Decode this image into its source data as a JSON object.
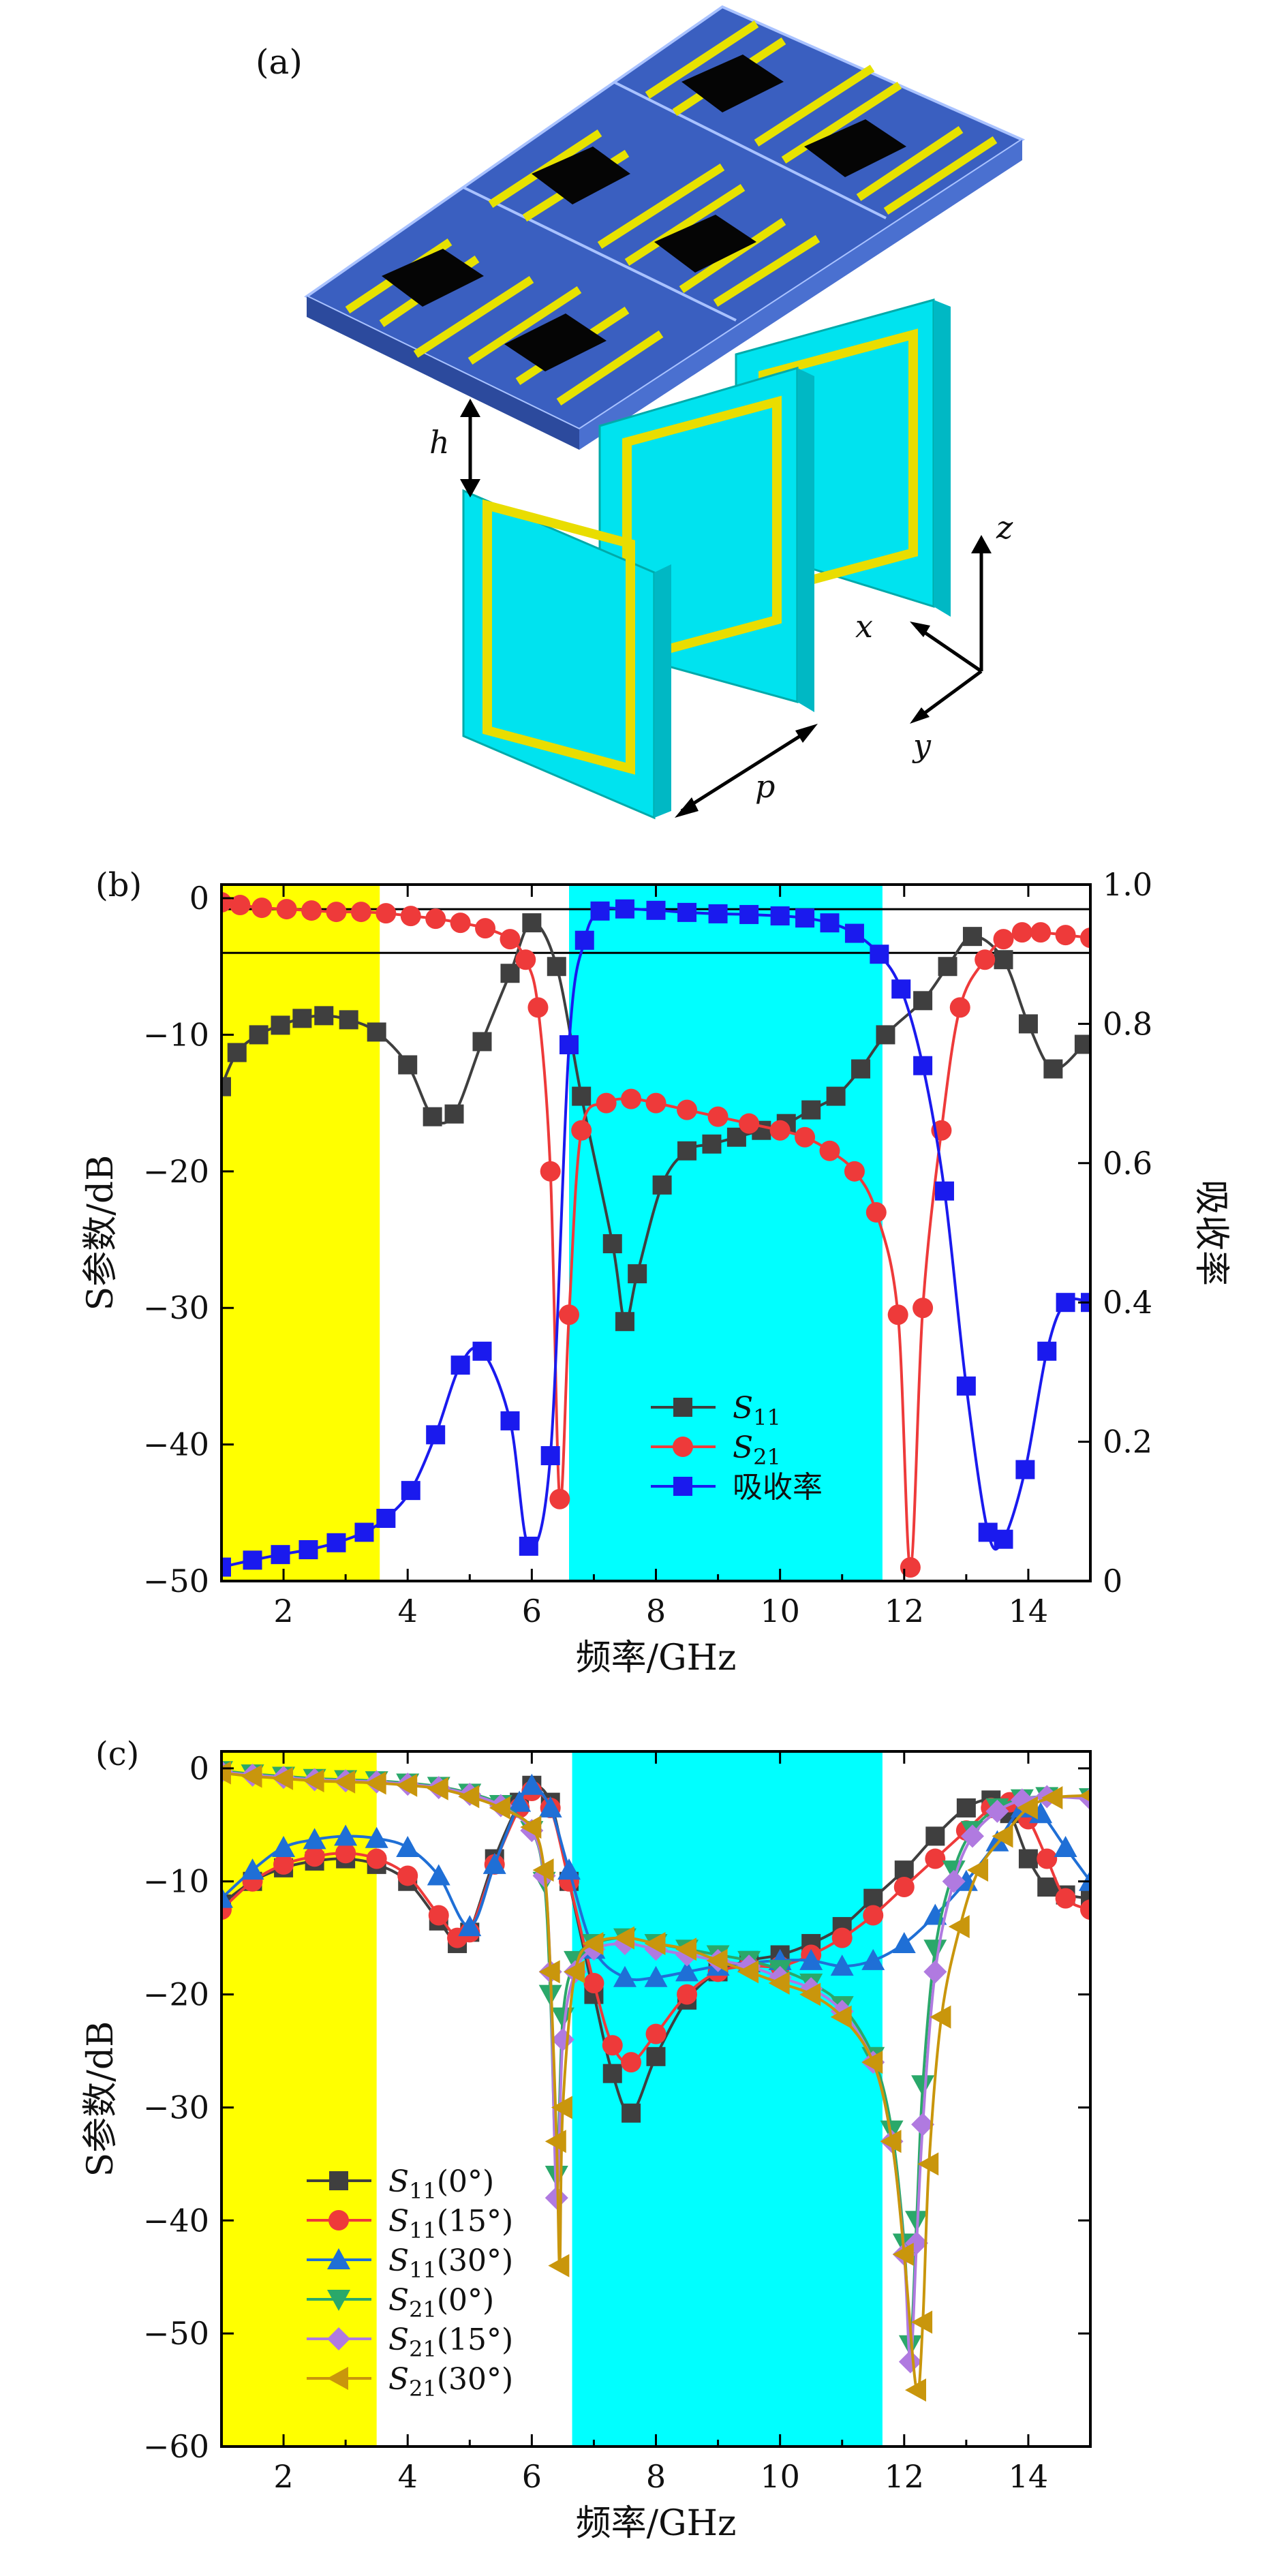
{
  "panel_a": {
    "label": "(a)",
    "h_label": "h",
    "p_label": "p",
    "axis_x": "x",
    "axis_y": "y",
    "axis_z": "z"
  },
  "panel_b": {
    "label": "(b)",
    "xlabel": "频率/GHz",
    "ylabel": "S参数/dB",
    "ylabel_right": "吸收率",
    "legend": [
      "S11",
      "S21",
      "吸收率"
    ]
  },
  "panel_c": {
    "label": "(c)",
    "xlabel": "频率/GHz",
    "ylabel": "S参数/dB",
    "legend": [
      "S11(0°)",
      "S11(15°)",
      "S11(30°)",
      "S21(0°)",
      "S21(15°)",
      "S21(30°)"
    ]
  },
  "colors": {
    "s11": "#3f3f3f",
    "s21": "#ee3a3a",
    "absorb": "#1a1aee",
    "s11_30": "#1f6fd6",
    "s21_0": "#2aa86a",
    "s21_15": "#b07ae0",
    "s21_30": "#c9960c",
    "yellow_band": "#ffff00",
    "cyan_band": "#00ffff"
  },
  "chart_data": [
    {
      "type": "line",
      "title": "(b)",
      "xlabel": "频率/GHz",
      "ylabel": "S参数/dB",
      "y2label": "吸收率",
      "xlim": [
        1,
        15
      ],
      "ylim": [
        -50,
        1
      ],
      "y2lim": [
        0,
        1.0
      ],
      "xticks": [
        2,
        4,
        6,
        8,
        10,
        12,
        14
      ],
      "yticks": [
        0,
        -10,
        -20,
        -30,
        -40,
        -50
      ],
      "y2ticks": [
        0,
        0.2,
        0.4,
        0.6,
        0.8,
        1.0
      ],
      "bands": [
        {
          "color": "yellow",
          "x": [
            1,
            3.55
          ]
        },
        {
          "color": "cyan",
          "x": [
            6.6,
            11.65
          ]
        }
      ],
      "reference_lines_db": [
        -0.8,
        -4.0
      ],
      "series": [
        {
          "name": "S11",
          "axis": "left",
          "x": [
            1.0,
            1.25,
            1.6,
            1.95,
            2.3,
            2.65,
            3.05,
            3.5,
            4.0,
            4.4,
            4.75,
            5.2,
            5.65,
            6.0,
            6.4,
            6.8,
            7.3,
            7.5,
            7.7,
            8.1,
            8.5,
            8.9,
            9.3,
            9.7,
            10.1,
            10.5,
            10.9,
            11.3,
            11.7,
            12.3,
            12.7,
            13.1,
            13.6,
            14.0,
            14.4,
            14.9
          ],
          "y": [
            -13.8,
            -11.3,
            -10.0,
            -9.3,
            -8.8,
            -8.6,
            -8.9,
            -9.8,
            -12.2,
            -16.0,
            -15.8,
            -10.5,
            -5.5,
            -1.8,
            -5.0,
            -14.5,
            -25.3,
            -31.0,
            -27.5,
            -21.0,
            -18.5,
            -18.0,
            -17.5,
            -17.0,
            -16.5,
            -15.5,
            -14.5,
            -12.5,
            -10.0,
            -7.5,
            -5.0,
            -2.8,
            -4.5,
            -9.2,
            -12.5,
            -10.7
          ]
        },
        {
          "name": "S21",
          "axis": "left",
          "x": [
            1.0,
            1.3,
            1.65,
            2.05,
            2.45,
            2.85,
            3.25,
            3.65,
            4.05,
            4.45,
            4.85,
            5.25,
            5.65,
            5.9,
            6.1,
            6.3,
            6.45,
            6.6,
            6.8,
            7.2,
            7.6,
            8.0,
            8.5,
            9.0,
            9.5,
            10.0,
            10.4,
            10.8,
            11.2,
            11.55,
            11.9,
            12.1,
            12.3,
            12.6,
            12.9,
            13.3,
            13.6,
            13.9,
            14.2,
            14.6,
            15.0
          ],
          "y": [
            -0.3,
            -0.5,
            -0.7,
            -0.8,
            -0.9,
            -1.0,
            -1.0,
            -1.1,
            -1.3,
            -1.5,
            -1.8,
            -2.2,
            -3.0,
            -4.5,
            -8.0,
            -20.0,
            -44.0,
            -30.5,
            -17.0,
            -15.0,
            -14.7,
            -15.0,
            -15.5,
            -16.0,
            -16.5,
            -17.0,
            -17.5,
            -18.5,
            -20.0,
            -23.0,
            -30.5,
            -49.0,
            -30.0,
            -17.0,
            -8.0,
            -4.5,
            -3.0,
            -2.5,
            -2.5,
            -2.7,
            -2.9
          ]
        },
        {
          "name": "吸收率",
          "axis": "right",
          "x": [
            1.0,
            1.5,
            1.95,
            2.4,
            2.85,
            3.3,
            3.65,
            4.05,
            4.45,
            4.85,
            5.2,
            5.65,
            5.95,
            6.3,
            6.6,
            6.85,
            7.1,
            7.5,
            8.0,
            8.5,
            9.0,
            9.5,
            10.0,
            10.4,
            10.8,
            11.2,
            11.6,
            11.95,
            12.3,
            12.65,
            13.0,
            13.35,
            13.6,
            13.95,
            14.3,
            14.6,
            15.0
          ],
          "y": [
            0.02,
            0.03,
            0.038,
            0.045,
            0.055,
            0.07,
            0.09,
            0.13,
            0.21,
            0.31,
            0.33,
            0.23,
            0.05,
            0.18,
            0.77,
            0.92,
            0.962,
            0.965,
            0.963,
            0.96,
            0.958,
            0.957,
            0.955,
            0.952,
            0.945,
            0.93,
            0.9,
            0.85,
            0.74,
            0.56,
            0.28,
            0.07,
            0.06,
            0.16,
            0.33,
            0.4,
            0.4
          ]
        }
      ]
    },
    {
      "type": "line",
      "title": "(c)",
      "xlabel": "频率/GHz",
      "ylabel": "S参数/dB",
      "xlim": [
        1,
        15
      ],
      "ylim": [
        -60,
        1.5
      ],
      "xticks": [
        2,
        4,
        6,
        8,
        10,
        12,
        14
      ],
      "yticks": [
        0,
        -10,
        -20,
        -30,
        -40,
        -50,
        -60
      ],
      "bands": [
        {
          "color": "yellow",
          "x": [
            1,
            3.5
          ]
        },
        {
          "color": "cyan",
          "x": [
            6.65,
            11.65
          ]
        }
      ],
      "series": [
        {
          "name": "S11(0°)",
          "x": [
            1.0,
            1.5,
            2.0,
            2.5,
            3.0,
            3.5,
            4.0,
            4.5,
            4.8,
            5.0,
            5.4,
            5.8,
            6.0,
            6.3,
            6.6,
            7.0,
            7.3,
            7.6,
            8.0,
            8.5,
            9.0,
            9.5,
            10.0,
            10.5,
            11.0,
            11.5,
            12.0,
            12.5,
            13.0,
            13.4,
            13.7,
            14.0,
            14.3,
            14.6,
            15.0
          ],
          "y": [
            -12.0,
            -10.0,
            -8.8,
            -8.2,
            -8.0,
            -8.5,
            -10.0,
            -13.5,
            -15.5,
            -14.5,
            -8.0,
            -3.0,
            -1.5,
            -3.0,
            -10.0,
            -20.0,
            -27.0,
            -30.5,
            -25.5,
            -20.5,
            -18.0,
            -17.0,
            -16.5,
            -15.5,
            -14.0,
            -11.5,
            -9.0,
            -6.0,
            -3.5,
            -2.8,
            -4.0,
            -8.0,
            -10.5,
            -11.2,
            -11.5
          ]
        },
        {
          "name": "S11(15°)",
          "x": [
            1.0,
            1.5,
            2.0,
            2.5,
            3.0,
            3.5,
            4.0,
            4.5,
            4.8,
            5.0,
            5.4,
            5.8,
            6.0,
            6.3,
            6.6,
            7.0,
            7.3,
            7.6,
            8.0,
            8.5,
            9.0,
            9.5,
            10.0,
            10.5,
            11.0,
            11.5,
            12.0,
            12.5,
            13.0,
            13.4,
            13.7,
            14.0,
            14.3,
            14.6,
            15.0
          ],
          "y": [
            -12.5,
            -10.0,
            -8.5,
            -7.8,
            -7.5,
            -8.0,
            -9.5,
            -13.0,
            -15.0,
            -14.5,
            -8.5,
            -3.5,
            -2.0,
            -3.5,
            -10.0,
            -19.0,
            -24.5,
            -26.0,
            -23.5,
            -20.0,
            -18.0,
            -17.5,
            -17.5,
            -16.5,
            -15.0,
            -13.0,
            -10.5,
            -8.0,
            -5.5,
            -3.5,
            -3.0,
            -4.5,
            -8.0,
            -11.5,
            -12.5
          ]
        },
        {
          "name": "S11(30°)",
          "x": [
            1.0,
            1.5,
            2.0,
            2.5,
            3.0,
            3.5,
            4.0,
            4.5,
            5.0,
            5.4,
            5.8,
            6.0,
            6.3,
            6.6,
            7.0,
            7.5,
            8.0,
            8.5,
            9.0,
            9.5,
            10.0,
            10.5,
            11.0,
            11.5,
            12.0,
            12.5,
            13.0,
            13.5,
            13.9,
            14.2,
            14.6,
            15.0
          ],
          "y": [
            -11.5,
            -9.0,
            -7.0,
            -6.3,
            -6.0,
            -6.2,
            -7.0,
            -9.5,
            -14.0,
            -8.5,
            -3.0,
            -1.5,
            -3.5,
            -9.0,
            -16.0,
            -18.5,
            -18.5,
            -18.0,
            -17.5,
            -17.2,
            -17.0,
            -17.0,
            -17.5,
            -17.0,
            -15.5,
            -13.0,
            -10.0,
            -6.5,
            -3.5,
            -4.0,
            -7.0,
            -10.0
          ]
        },
        {
          "name": "S21(0°)",
          "x": [
            1.0,
            1.5,
            2.0,
            2.5,
            3.0,
            3.5,
            4.0,
            4.5,
            5.0,
            5.5,
            6.0,
            6.2,
            6.3,
            6.4,
            6.5,
            6.7,
            7.0,
            7.5,
            8.0,
            8.5,
            9.0,
            9.5,
            10.0,
            10.5,
            11.0,
            11.5,
            11.8,
            12.0,
            12.1,
            12.2,
            12.3,
            12.5,
            12.8,
            13.1,
            13.5,
            13.9,
            14.3,
            15.0
          ],
          "y": [
            -0.2,
            -0.5,
            -0.7,
            -0.9,
            -1.0,
            -1.1,
            -1.3,
            -1.6,
            -2.2,
            -3.2,
            -5.5,
            -10.0,
            -20.0,
            -36.0,
            -22.0,
            -17.0,
            -15.5,
            -15.0,
            -15.5,
            -16.0,
            -16.5,
            -17.0,
            -17.8,
            -19.0,
            -21.0,
            -25.5,
            -32.0,
            -42.0,
            -51.0,
            -40.0,
            -28.0,
            -16.0,
            -9.0,
            -5.5,
            -3.5,
            -2.7,
            -2.5,
            -2.6
          ]
        },
        {
          "name": "S21(15°)",
          "x": [
            1.0,
            1.5,
            2.0,
            2.5,
            3.0,
            3.5,
            4.0,
            4.5,
            5.0,
            5.5,
            6.0,
            6.2,
            6.3,
            6.4,
            6.5,
            6.7,
            7.0,
            7.5,
            8.0,
            8.5,
            9.0,
            9.5,
            10.0,
            10.5,
            11.0,
            11.5,
            11.8,
            12.0,
            12.1,
            12.2,
            12.3,
            12.5,
            12.8,
            13.1,
            13.5,
            13.9,
            14.3,
            15.0
          ],
          "y": [
            -0.3,
            -0.6,
            -0.8,
            -1.0,
            -1.1,
            -1.2,
            -1.4,
            -1.7,
            -2.3,
            -3.3,
            -5.5,
            -9.5,
            -18.0,
            -38.0,
            -24.0,
            -18.0,
            -16.0,
            -15.5,
            -16.0,
            -16.5,
            -17.0,
            -17.5,
            -18.5,
            -19.5,
            -21.5,
            -26.0,
            -33.0,
            -43.0,
            -52.5,
            -42.0,
            -31.5,
            -18.0,
            -10.0,
            -6.0,
            -3.8,
            -2.8,
            -2.5,
            -2.7
          ]
        },
        {
          "name": "S21(30°)",
          "x": [
            1.0,
            1.5,
            2.0,
            2.5,
            3.0,
            3.5,
            4.0,
            4.5,
            5.0,
            5.5,
            6.0,
            6.2,
            6.3,
            6.4,
            6.45,
            6.5,
            6.7,
            7.0,
            7.5,
            8.0,
            8.5,
            9.0,
            9.5,
            10.0,
            10.5,
            11.0,
            11.5,
            11.8,
            12.0,
            12.2,
            12.3,
            12.4,
            12.6,
            12.9,
            13.2,
            13.6,
            14.0,
            14.4,
            15.0
          ],
          "y": [
            -0.4,
            -0.7,
            -0.9,
            -1.1,
            -1.2,
            -1.3,
            -1.5,
            -1.8,
            -2.5,
            -3.5,
            -5.2,
            -9.0,
            -18.0,
            -33.0,
            -44.0,
            -30.0,
            -18.0,
            -15.5,
            -15.0,
            -15.5,
            -16.0,
            -17.0,
            -18.0,
            -19.0,
            -20.0,
            -22.0,
            -26.0,
            -33.0,
            -43.0,
            -55.0,
            -49.0,
            -35.0,
            -22.0,
            -14.0,
            -9.0,
            -6.0,
            -3.5,
            -2.6,
            -2.4
          ]
        }
      ]
    }
  ]
}
